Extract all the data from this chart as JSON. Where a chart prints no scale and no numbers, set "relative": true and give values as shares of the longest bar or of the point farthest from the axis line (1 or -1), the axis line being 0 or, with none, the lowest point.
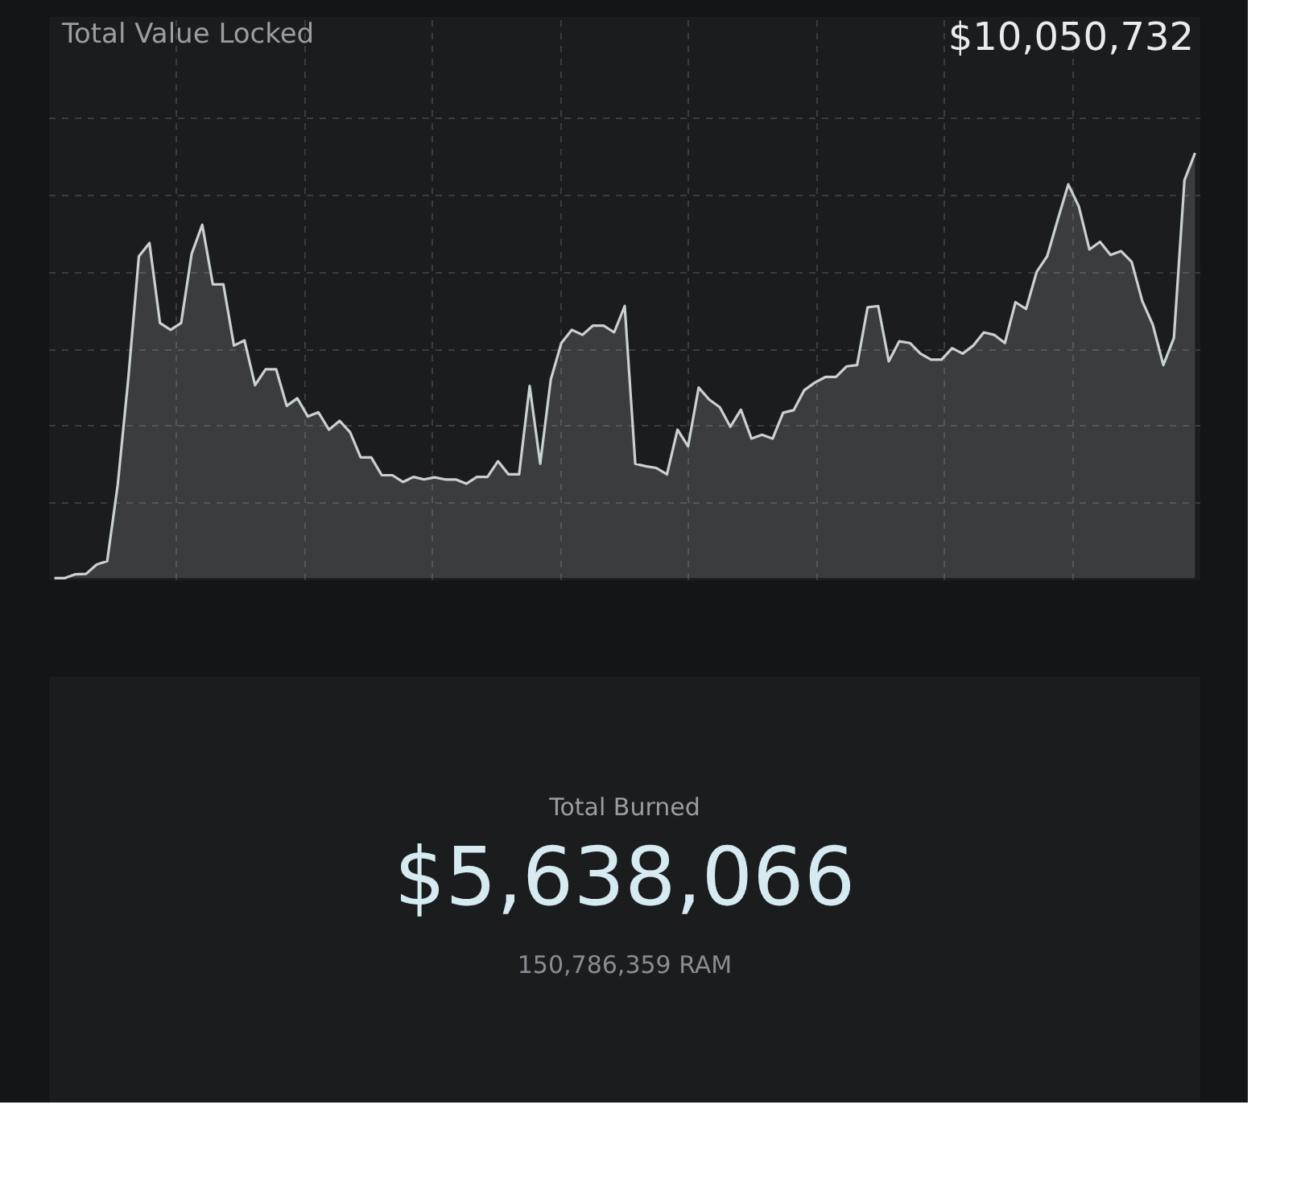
{
  "chart_data": [
    {
      "type": "area",
      "title": "Total Value Locked",
      "annotations": [
        "$10,050,732"
      ],
      "relative": true,
      "grid": true,
      "line_style": "solid",
      "categories": [
        null,
        null,
        null,
        null,
        null,
        null,
        null,
        null,
        null,
        null,
        null,
        null,
        null,
        null,
        null,
        null,
        null,
        null,
        null,
        null,
        null,
        null,
        null,
        null,
        null,
        null,
        null,
        null,
        null,
        null,
        null,
        null,
        null,
        null,
        null,
        null,
        null,
        null,
        null,
        null,
        null,
        null,
        null,
        null,
        null,
        null,
        null,
        null,
        null,
        null,
        null,
        null,
        null,
        null,
        null,
        null,
        null,
        null,
        null,
        null,
        null,
        null,
        null,
        null,
        null,
        null,
        null,
        null,
        null,
        null,
        null,
        null,
        null,
        null,
        null,
        null,
        null,
        null,
        null,
        null,
        null,
        null,
        null,
        null,
        null,
        null,
        null,
        null,
        null,
        null,
        null,
        null,
        null,
        null,
        null,
        null,
        null,
        null,
        null,
        null,
        null,
        null,
        null,
        null,
        null,
        null,
        null,
        null,
        null
      ],
      "series": [
        {
          "color": "#c9d1d1",
          "values": [
            0,
            0,
            0.009,
            0.01,
            0.032,
            0.04,
            0.22,
            0.47,
            0.757,
            0.788,
            0.6,
            0.584,
            0.6,
            0.763,
            0.831,
            0.691,
            0.691,
            0.547,
            0.559,
            0.454,
            0.491,
            0.491,
            0.405,
            0.423,
            0.38,
            0.39,
            0.349,
            0.37,
            0.343,
            0.284,
            0.284,
            0.242,
            0.242,
            0.226,
            0.238,
            0.232,
            0.237,
            0.232,
            0.232,
            0.222,
            0.238,
            0.238,
            0.275,
            0.244,
            0.244,
            0.452,
            0.269,
            0.467,
            0.553,
            0.584,
            0.572,
            0.594,
            0.594,
            0.578,
            0.64,
            0.269,
            0.263,
            0.259,
            0.244,
            0.349,
            0.31,
            0.448,
            0.42,
            0.402,
            0.356,
            0.396,
            0.328,
            0.337,
            0.328,
            0.389,
            0.395,
            0.442,
            0.46,
            0.473,
            0.473,
            0.498,
            0.501,
            0.637,
            0.64,
            0.51,
            0.557,
            0.553,
            0.528,
            0.514,
            0.514,
            0.541,
            0.528,
            0.547,
            0.578,
            0.572,
            0.553,
            0.649,
            0.633,
            0.72,
            0.757,
            0.843,
            0.926,
            0.874,
            0.773,
            0.791,
            0.76,
            0.769,
            0.744,
            0.652,
            0.596,
            0.501,
            0.565,
            0.936,
            1.0
          ]
        }
      ]
    },
    {
      "type": "other",
      "title": "Total Burned",
      "annotations": [
        "$5,638,066",
        "150,786,359 RAM"
      ]
    }
  ]
}
